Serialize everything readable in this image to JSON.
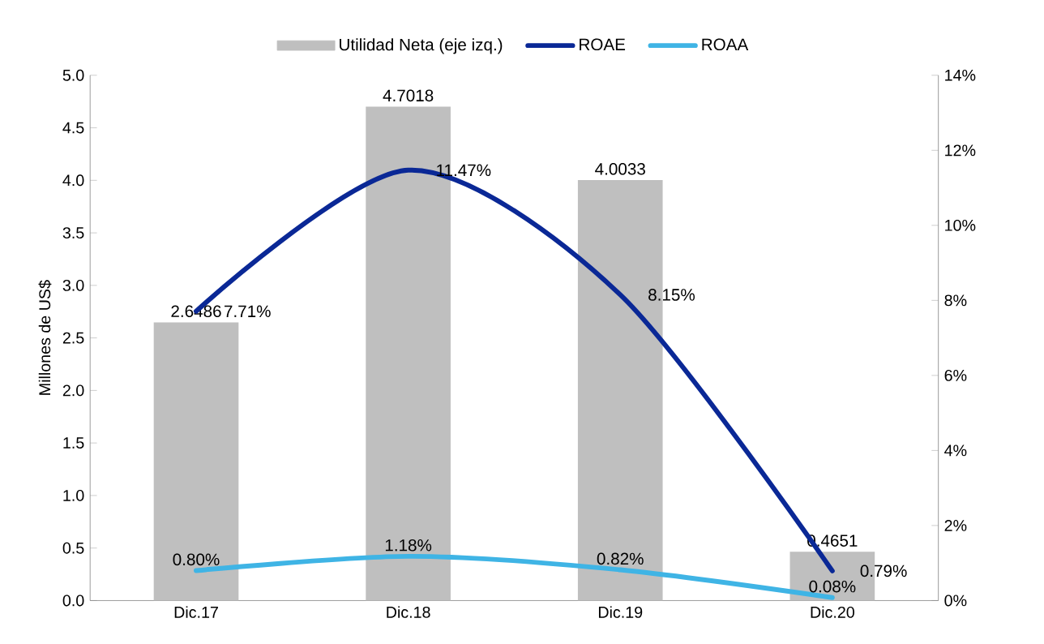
{
  "chart_data": {
    "type": "bar",
    "ylabel": "Millones de US$",
    "categories": [
      "Dic.17",
      "Dic.18",
      "Dic.19",
      "Dic.20"
    ],
    "ylim": [
      0,
      5
    ],
    "yticks": [
      {
        "value": 0,
        "label": "0.0"
      },
      {
        "value": 0.5,
        "label": "0.5"
      },
      {
        "value": 1,
        "label": "1.0"
      },
      {
        "value": 1.5,
        "label": "1.5"
      },
      {
        "value": 2,
        "label": "2.0"
      },
      {
        "value": 2.5,
        "label": "2.5"
      },
      {
        "value": 3,
        "label": "3.0"
      },
      {
        "value": 3.5,
        "label": "3.5"
      },
      {
        "value": 4,
        "label": "4.0"
      },
      {
        "value": 4.5,
        "label": "4.5"
      },
      {
        "value": 5,
        "label": "5.0"
      }
    ],
    "y2lim": [
      0,
      14
    ],
    "y2ticks": [
      {
        "value": 0,
        "label": "0%"
      },
      {
        "value": 2,
        "label": "2%"
      },
      {
        "value": 4,
        "label": "4%"
      },
      {
        "value": 6,
        "label": "6%"
      },
      {
        "value": 8,
        "label": "8%"
      },
      {
        "value": 10,
        "label": "10%"
      },
      {
        "value": 12,
        "label": "12%"
      },
      {
        "value": 14,
        "label": "14%"
      }
    ],
    "legend": "top",
    "series": [
      {
        "name": "Utilidad Neta (eje izq.)",
        "color": "#bfbfbf",
        "values": [
          2.6486,
          4.7018,
          4.0033,
          0.4651
        ],
        "value_labels": [
          "2.6486",
          "4.7018",
          "4.0033",
          "0.4651"
        ]
      },
      {
        "name": "ROAE",
        "type": "line",
        "axis": "y2",
        "color": "#0a2896",
        "values": [
          7.71,
          11.47,
          8.15,
          0.79
        ],
        "value_labels": [
          "7.71%",
          "11.47%",
          "8.15%",
          "0.79%"
        ]
      },
      {
        "name": "ROAA",
        "type": "line",
        "axis": "y2",
        "color": "#3fb4e5",
        "values": [
          0.8,
          1.18,
          0.82,
          0.08
        ],
        "value_labels": [
          "0.80%",
          "1.18%",
          "0.82%",
          "0.08%"
        ]
      }
    ]
  }
}
